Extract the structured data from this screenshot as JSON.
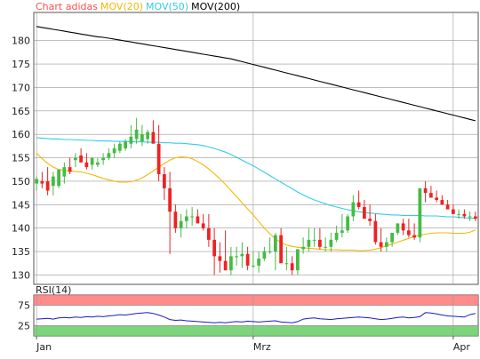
{
  "legend": {
    "title": "Chart adidas",
    "ma20": "MOV(20)",
    "ma50": "MOV(50)",
    "ma200": "MOV(200)"
  },
  "colors": {
    "title": "#ff4d4d",
    "ma20": "#f5b800",
    "ma50": "#33cce6",
    "ma200": "#000000",
    "up": "#44bb44",
    "down": "#ee2222",
    "rsi_line": "#1a1acc",
    "rsi_overbought": "#ff7777",
    "rsi_oversold": "#66cc66",
    "grid": "#999999"
  },
  "chart_data": [
    {
      "type": "candlestick",
      "title": "Chart adidas",
      "ylim": [
        128,
        186
      ],
      "yticks": [
        130,
        135,
        140,
        145,
        150,
        155,
        160,
        165,
        170,
        175,
        180
      ],
      "xtick_labels": [
        "Jan",
        "Mrz",
        "Apr"
      ],
      "xtick_positions": [
        0,
        39,
        75
      ],
      "grid": true,
      "series": [
        {
          "name": "MOV(200)",
          "values": [
            183.0,
            182.8,
            182.6,
            182.4,
            182.2,
            182.0,
            181.8,
            181.6,
            181.4,
            181.2,
            181.0,
            180.8,
            180.7,
            180.5,
            180.3,
            180.1,
            179.9,
            179.7,
            179.5,
            179.3,
            179.1,
            178.9,
            178.7,
            178.5,
            178.3,
            178.1,
            177.9,
            177.7,
            177.5,
            177.3,
            177.1,
            176.9,
            176.7,
            176.5,
            176.3,
            176.1,
            175.8,
            175.5,
            175.2,
            174.9,
            174.6,
            174.3,
            174.0,
            173.7,
            173.4,
            173.1,
            172.8,
            172.5,
            172.2,
            171.9,
            171.6,
            171.3,
            171.0,
            170.7,
            170.4,
            170.1,
            169.8,
            169.5,
            169.2,
            168.9,
            168.6,
            168.3,
            168.0,
            167.7,
            167.4,
            167.1,
            166.8,
            166.5,
            166.2,
            165.9,
            165.6,
            165.3,
            165.0,
            164.7,
            164.4,
            164.1,
            163.8,
            163.5,
            163.2,
            162.9
          ]
        },
        {
          "name": "MOV(50)",
          "values": [
            159.3,
            159.2,
            159.1,
            159.0,
            159.0,
            158.9,
            158.9,
            158.8,
            158.8,
            158.7,
            158.7,
            158.6,
            158.6,
            158.6,
            158.5,
            158.5,
            158.5,
            158.4,
            158.4,
            158.4,
            158.3,
            158.3,
            158.3,
            158.2,
            158.2,
            158.1,
            158.1,
            158.0,
            157.9,
            157.8,
            157.6,
            157.3,
            157.0,
            156.6,
            156.2,
            155.7,
            155.1,
            154.5,
            153.9,
            153.3,
            152.6,
            151.9,
            151.2,
            150.5,
            149.8,
            149.1,
            148.4,
            147.7,
            147.1,
            146.5,
            146.0,
            145.6,
            145.2,
            144.8,
            144.5,
            144.2,
            143.9,
            143.7,
            143.5,
            143.3,
            143.2,
            143.1,
            143.0,
            142.9,
            142.8,
            142.8,
            142.7,
            142.7,
            142.7,
            142.7,
            142.6,
            142.6,
            142.6,
            142.5,
            142.4,
            142.4,
            142.3,
            142.2,
            142.1,
            142.1
          ]
        },
        {
          "name": "MOV(20)",
          "values": [
            156.0,
            154.8,
            153.8,
            153.0,
            152.5,
            152.3,
            152.2,
            152.1,
            152.0,
            151.7,
            151.4,
            151.0,
            150.6,
            150.3,
            150.0,
            149.8,
            149.8,
            149.9,
            150.2,
            150.7,
            151.4,
            152.2,
            153.0,
            153.8,
            154.5,
            155.0,
            155.2,
            155.1,
            154.8,
            154.2,
            153.5,
            152.6,
            151.6,
            150.5,
            149.3,
            148.0,
            146.7,
            145.4,
            144.1,
            142.8,
            141.4,
            140.0,
            138.8,
            137.7,
            136.9,
            136.4,
            136.1,
            135.9,
            135.8,
            135.7,
            135.6,
            135.5,
            135.4,
            135.4,
            135.4,
            135.3,
            135.3,
            135.3,
            135.2,
            135.2,
            135.3,
            135.5,
            135.8,
            136.2,
            136.6,
            137.0,
            137.4,
            137.8,
            138.2,
            138.5,
            138.7,
            138.9,
            139.0,
            139.0,
            139.0,
            138.9,
            138.9,
            138.9,
            139.1,
            139.6
          ]
        }
      ],
      "candles": {
        "open": [
          149.5,
          150.0,
          150.0,
          149.0,
          149.0,
          151.0,
          153.0,
          154.5,
          155.5,
          154.0,
          153.5,
          153.5,
          154.5,
          155.0,
          156.0,
          156.5,
          157.0,
          158.0,
          159.0,
          158.5,
          159.0,
          160.5,
          158.0,
          151.5,
          148.5,
          143.5,
          140.0,
          141.5,
          142.5,
          142.5,
          141.0,
          140.0,
          137.5,
          134.0,
          133.0,
          131.0,
          134.0,
          134.0,
          134.5,
          132.0,
          132.0,
          133.5,
          135.0,
          135.0,
          138.5,
          132.5,
          132.5,
          131.0,
          135.5,
          136.0,
          137.5,
          137.5,
          136.0,
          136.0,
          137.5,
          139.0,
          139.5,
          142.5,
          145.5,
          144.5,
          142.0,
          141.5,
          137.0,
          136.0,
          137.0,
          139.0,
          141.0,
          139.5,
          138.5,
          138.0,
          148.5,
          147.5,
          146.5,
          146.0,
          145.0,
          144.0,
          143.0,
          143.0,
          142.5,
          142.5
        ],
        "high": [
          151.0,
          152.0,
          153.0,
          152.0,
          152.0,
          154.0,
          155.0,
          156.0,
          157.0,
          156.0,
          155.0,
          155.0,
          156.0,
          157.0,
          158.0,
          158.5,
          159.0,
          162.0,
          163.5,
          162.0,
          161.0,
          163.0,
          162.0,
          153.0,
          152.0,
          145.0,
          143.0,
          144.0,
          144.5,
          144.0,
          143.0,
          143.0,
          140.0,
          137.0,
          139.5,
          136.0,
          136.0,
          137.0,
          136.0,
          135.0,
          135.0,
          136.0,
          138.0,
          139.0,
          140.0,
          136.0,
          134.0,
          134.0,
          138.0,
          140.0,
          140.0,
          140.0,
          138.0,
          139.0,
          140.5,
          143.0,
          143.0,
          147.0,
          148.0,
          146.0,
          145.0,
          143.0,
          140.0,
          138.0,
          138.5,
          141.0,
          142.0,
          142.0,
          141.0,
          140.0,
          150.0,
          149.0,
          148.0,
          147.0,
          146.0,
          145.0,
          144.0,
          144.0,
          143.5,
          143.5
        ],
        "low": [
          148.0,
          148.5,
          147.0,
          147.0,
          148.5,
          149.5,
          151.5,
          153.0,
          154.0,
          152.5,
          152.5,
          153.0,
          153.5,
          154.5,
          155.0,
          156.0,
          156.5,
          157.0,
          158.0,
          157.5,
          158.0,
          158.5,
          150.0,
          146.0,
          134.5,
          139.0,
          138.0,
          140.0,
          140.5,
          141.0,
          139.5,
          136.0,
          130.0,
          130.5,
          131.0,
          130.0,
          132.0,
          131.5,
          131.0,
          131.5,
          130.5,
          133.0,
          134.5,
          131.0,
          133.0,
          131.0,
          130.0,
          130.0,
          134.5,
          135.0,
          136.0,
          135.5,
          135.0,
          135.0,
          137.0,
          138.0,
          139.0,
          141.5,
          144.0,
          142.5,
          140.5,
          136.5,
          135.0,
          135.0,
          136.0,
          138.5,
          138.5,
          138.0,
          137.5,
          137.0,
          145.5,
          146.5,
          145.5,
          145.0,
          144.0,
          143.0,
          142.0,
          142.0,
          141.5,
          141.5
        ],
        "close": [
          150.5,
          149.5,
          148.0,
          151.0,
          152.5,
          153.0,
          152.0,
          155.0,
          154.0,
          153.0,
          155.0,
          154.0,
          155.0,
          156.0,
          157.0,
          158.0,
          158.5,
          159.5,
          161.0,
          160.0,
          160.5,
          158.0,
          151.5,
          148.5,
          143.5,
          140.0,
          141.5,
          142.5,
          142.5,
          141.0,
          140.0,
          137.5,
          134.0,
          133.0,
          131.0,
          134.0,
          134.0,
          134.5,
          132.0,
          132.0,
          133.5,
          135.0,
          135.0,
          138.5,
          132.5,
          132.5,
          131.0,
          135.5,
          136.0,
          137.5,
          137.5,
          136.0,
          136.0,
          137.5,
          139.0,
          139.5,
          142.5,
          145.5,
          144.5,
          142.0,
          141.5,
          137.0,
          136.0,
          137.0,
          139.0,
          141.0,
          139.5,
          138.5,
          138.0,
          148.5,
          147.5,
          146.5,
          146.0,
          145.0,
          144.0,
          143.0,
          143.0,
          142.5,
          142.5,
          142.0
        ]
      }
    },
    {
      "type": "line",
      "title": "RSI(14)",
      "ylim": [
        0,
        100
      ],
      "yticks": [
        25,
        75
      ],
      "bands": [
        {
          "from": 75,
          "to": 100,
          "label": "overbought"
        },
        {
          "from": 0,
          "to": 25,
          "label": "oversold"
        }
      ],
      "series": [
        {
          "name": "RSI(14)",
          "values": [
            41,
            42,
            43,
            41,
            44,
            45,
            44,
            46,
            45,
            47,
            46,
            48,
            47,
            49,
            50,
            52,
            51,
            53,
            55,
            56,
            57,
            55,
            51,
            46,
            40,
            38,
            39,
            37,
            36,
            35,
            34,
            33,
            32,
            33,
            32,
            34,
            35,
            34,
            36,
            35,
            34,
            35,
            36,
            37,
            34,
            33,
            32,
            35,
            41,
            43,
            44,
            42,
            41,
            40,
            42,
            43,
            44,
            45,
            46,
            45,
            44,
            42,
            40,
            41,
            43,
            45,
            46,
            44,
            45,
            47,
            57,
            56,
            54,
            51,
            49,
            48,
            47,
            46,
            52,
            55
          ]
        }
      ]
    }
  ]
}
